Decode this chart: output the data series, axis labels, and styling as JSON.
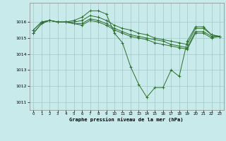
{
  "title": "Graphe pression niveau de la mer (hPa)",
  "background_color": "#c8eaea",
  "grid_color": "#a0c8c8",
  "line_color": "#2d6e2d",
  "xlim": [
    -0.5,
    23.5
  ],
  "ylim": [
    1010.5,
    1017.2
  ],
  "yticks": [
    1011,
    1012,
    1013,
    1014,
    1015,
    1016
  ],
  "xticks": [
    0,
    1,
    2,
    3,
    4,
    5,
    6,
    7,
    8,
    9,
    10,
    11,
    12,
    13,
    14,
    15,
    16,
    17,
    18,
    19,
    20,
    21,
    22,
    23
  ],
  "series": [
    [
      1015.3,
      1015.9,
      1016.1,
      1016.0,
      1016.0,
      1016.1,
      1016.3,
      1016.7,
      1016.7,
      1016.5,
      1015.3,
      1014.7,
      1013.2,
      1012.1,
      1011.3,
      1011.9,
      1011.9,
      1013.0,
      1012.6,
      1014.8,
      1015.7,
      1015.7,
      1015.2,
      1015.1
    ],
    [
      1015.3,
      1015.9,
      1016.1,
      1016.0,
      1016.0,
      1016.0,
      1016.1,
      1016.4,
      1016.3,
      1016.1,
      1015.8,
      1015.6,
      1015.5,
      1015.3,
      1015.2,
      1015.0,
      1014.9,
      1014.8,
      1014.7,
      1014.6,
      1015.6,
      1015.6,
      1015.2,
      1015.1
    ],
    [
      1015.5,
      1016.0,
      1016.1,
      1016.0,
      1016.0,
      1015.9,
      1015.9,
      1016.2,
      1016.1,
      1015.9,
      1015.6,
      1015.4,
      1015.2,
      1015.1,
      1015.0,
      1014.9,
      1014.8,
      1014.6,
      1014.5,
      1014.4,
      1015.4,
      1015.4,
      1015.1,
      1015.1
    ],
    [
      1015.5,
      1016.0,
      1016.1,
      1016.0,
      1016.0,
      1015.9,
      1015.8,
      1016.1,
      1016.0,
      1015.8,
      1015.5,
      1015.3,
      1015.1,
      1015.0,
      1014.9,
      1014.7,
      1014.6,
      1014.5,
      1014.4,
      1014.3,
      1015.3,
      1015.3,
      1015.0,
      1015.1
    ]
  ]
}
